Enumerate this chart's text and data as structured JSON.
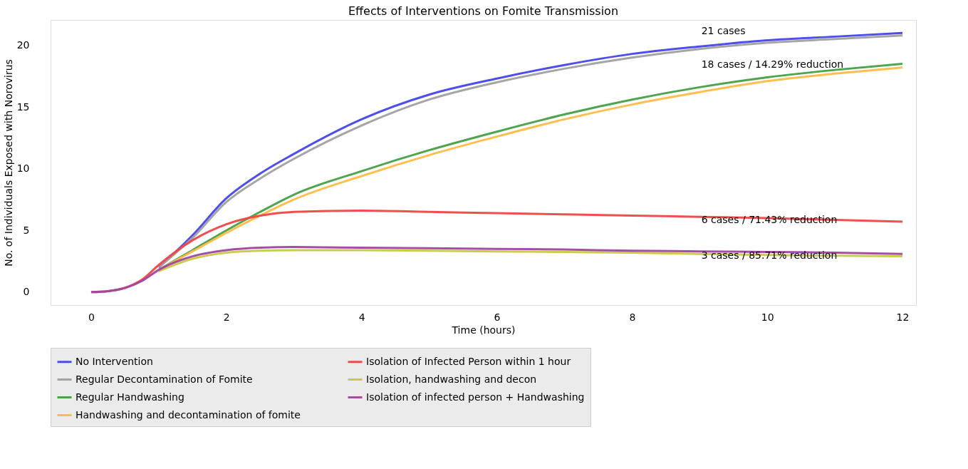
{
  "chart_data": {
    "type": "line",
    "title": "Effects of Interventions on Fomite Transmission",
    "xlabel": "Time (hours)",
    "ylabel": "No. of Individuals Exposed with Norovirus",
    "x": [
      0,
      0.25,
      0.5,
      0.75,
      1,
      1.5,
      2,
      2.5,
      3,
      4,
      5,
      6,
      7,
      8,
      9,
      10,
      11,
      12
    ],
    "series": [
      {
        "name": "No Intervention",
        "color": "#4444ee",
        "values": [
          null,
          null,
          null,
          null,
          2.0,
          4.6,
          7.6,
          9.6,
          11.2,
          14.0,
          16.0,
          17.3,
          18.4,
          19.3,
          19.9,
          20.4,
          20.7,
          21.0
        ]
      },
      {
        "name": "Regular Decontamination of Fomite",
        "color": "#a0a0a0",
        "values": [
          null,
          null,
          null,
          null,
          2.0,
          4.4,
          7.3,
          9.2,
          10.8,
          13.5,
          15.6,
          17.0,
          18.1,
          19.0,
          19.7,
          20.2,
          20.5,
          20.8
        ]
      },
      {
        "name": "Regular Handwashing",
        "color": "#44a044",
        "values": [
          null,
          null,
          null,
          null,
          1.8,
          3.4,
          5.0,
          6.5,
          7.9,
          9.8,
          11.5,
          13.0,
          14.4,
          15.6,
          16.6,
          17.4,
          18.0,
          18.5
        ]
      },
      {
        "name": "Handwashing and decontamination of fomite",
        "color": "#ffbb44",
        "values": [
          null,
          null,
          null,
          null,
          1.8,
          3.3,
          4.8,
          6.2,
          7.5,
          9.4,
          11.1,
          12.6,
          14.0,
          15.2,
          16.2,
          17.1,
          17.7,
          18.2
        ]
      },
      {
        "name": "Isolation of Infected Person within 1 hour",
        "color": "#f04444",
        "values": [
          0,
          0.08,
          0.35,
          1.0,
          2.2,
          4.2,
          5.5,
          6.2,
          6.5,
          6.6,
          6.5,
          6.4,
          6.3,
          6.2,
          6.1,
          6.0,
          5.85,
          5.7
        ]
      },
      {
        "name": "Isolation, handwashing and decon",
        "color": "#c8c844",
        "values": [
          null,
          null,
          null,
          null,
          1.7,
          2.7,
          3.2,
          3.35,
          3.4,
          3.4,
          3.35,
          3.3,
          3.25,
          3.2,
          3.1,
          3.0,
          2.95,
          2.9
        ]
      },
      {
        "name": "Isolation of infected person + Handwashing",
        "color": "#a044a0",
        "values": [
          0,
          0.08,
          0.33,
          0.9,
          1.8,
          2.9,
          3.4,
          3.6,
          3.65,
          3.6,
          3.55,
          3.5,
          3.45,
          3.35,
          3.3,
          3.25,
          3.2,
          3.1
        ]
      }
    ],
    "annotations": [
      "21 cases",
      "18 cases / 14.29% reduction",
      "6 cases / 71.43% reduction",
      "3 cases / 85.71% reduction"
    ],
    "xlim": [
      -0.6,
      12.2
    ],
    "ylim": [
      -1.05,
      22.05
    ],
    "xticks": [
      0,
      2,
      4,
      6,
      8,
      10,
      12
    ],
    "yticks": [
      0,
      5,
      10,
      15,
      20
    ],
    "grid": false,
    "legend": "bottom",
    "line_style": "solid",
    "marker": "none"
  }
}
